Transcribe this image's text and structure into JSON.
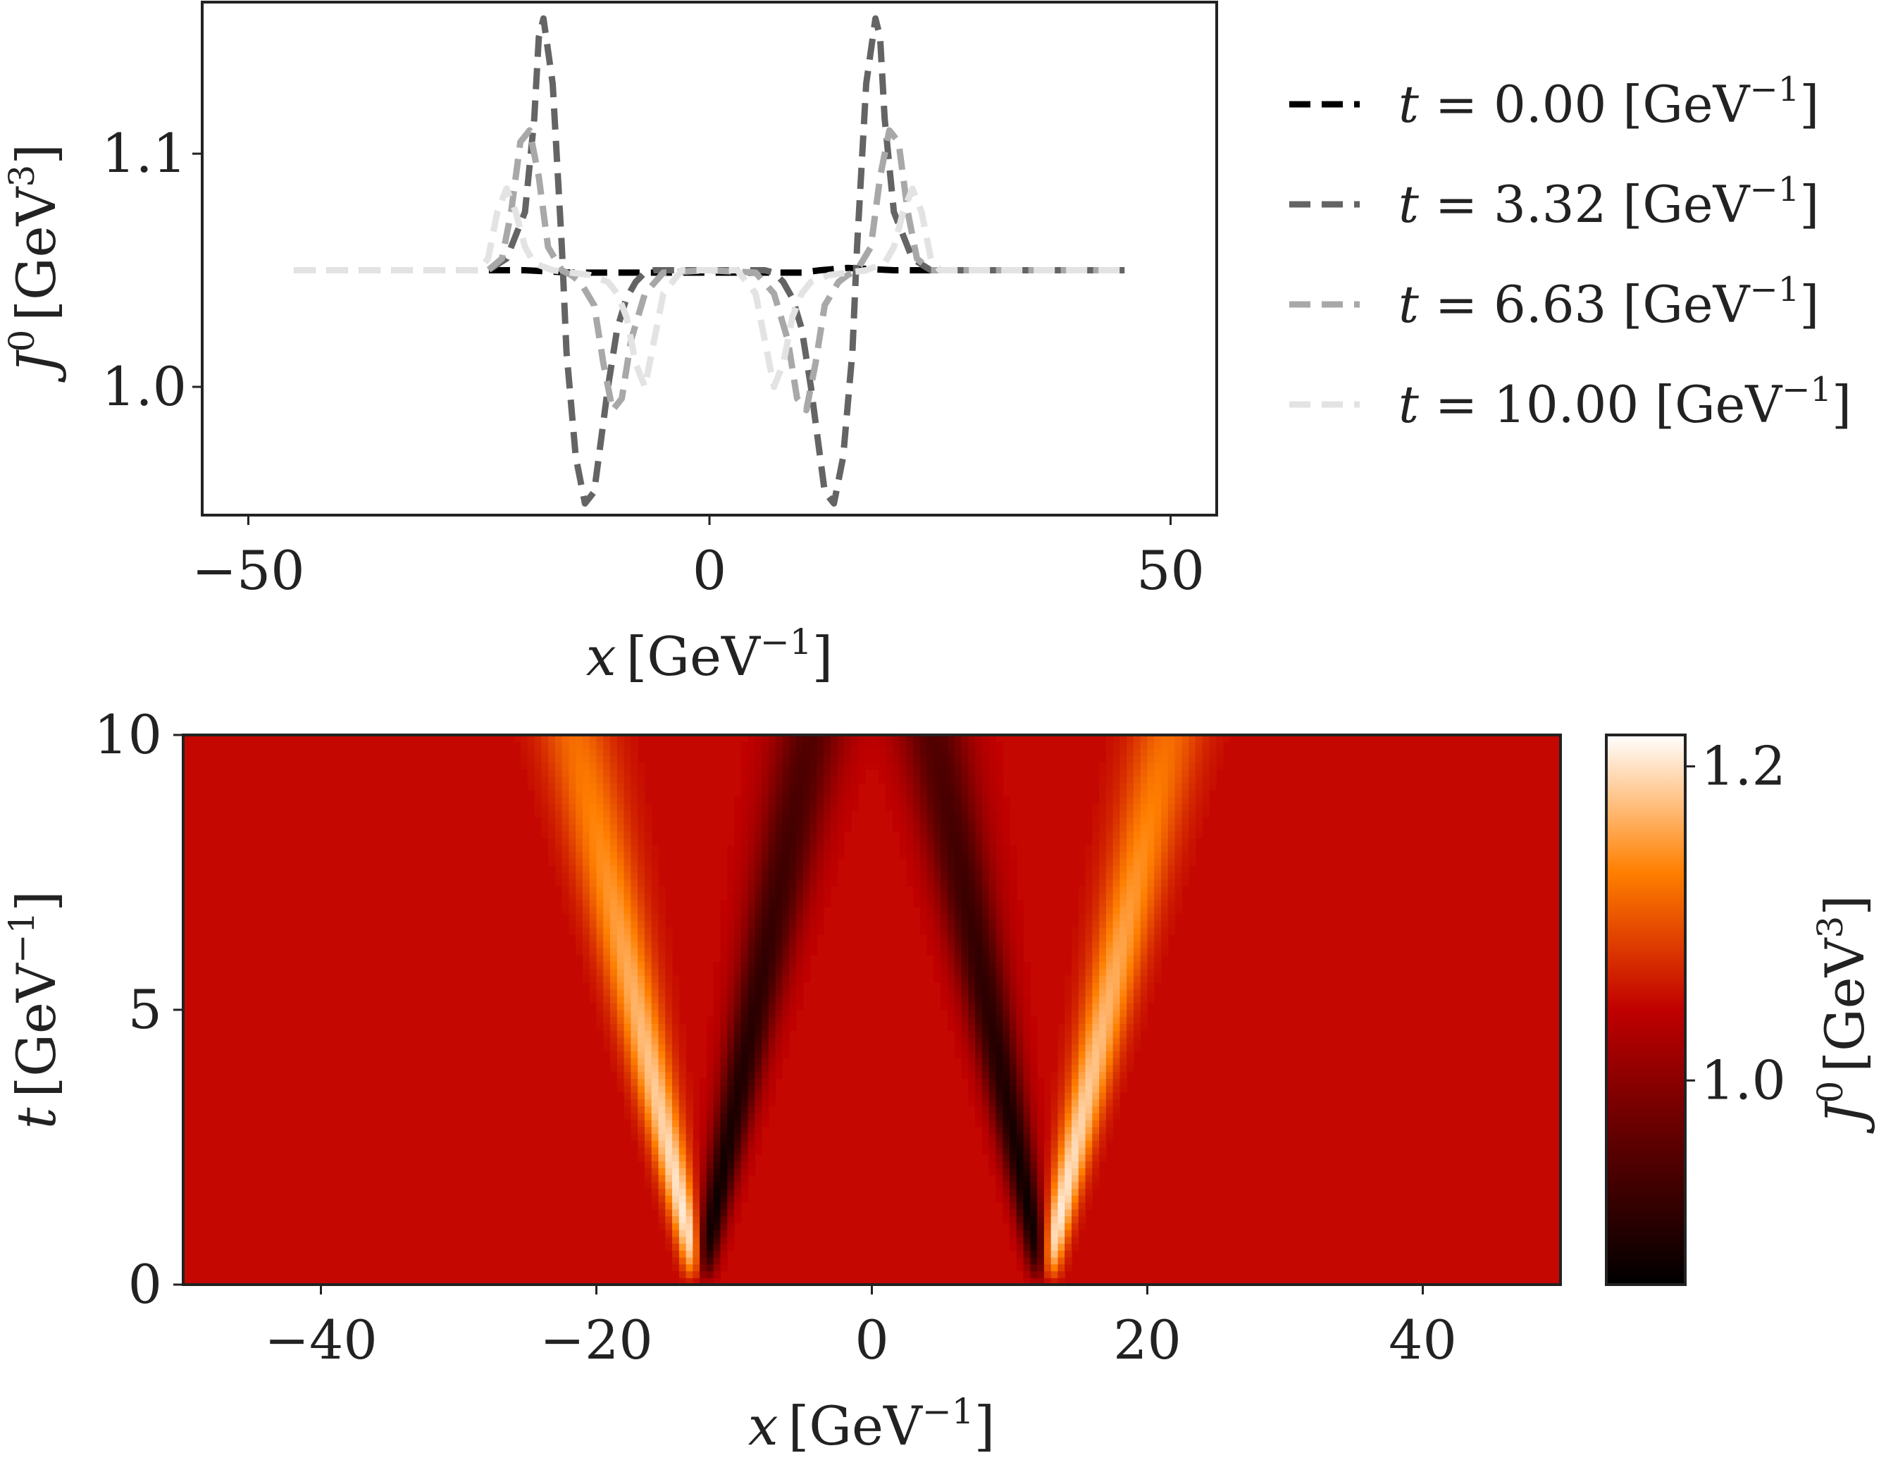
{
  "chart_data": [
    {
      "type": "line",
      "xlabel": {
        "var": "x",
        "unit_base": "GeV",
        "unit_exp": "−1"
      },
      "ylabel": {
        "var": "J",
        "var_sup": "0",
        "unit_base": "GeV",
        "unit_exp": "3"
      },
      "xlim": [
        -55,
        55
      ],
      "ylim": [
        0.945,
        1.165
      ],
      "xticks": [
        {
          "value": -50,
          "label": "−50"
        },
        {
          "value": 0,
          "label": "0"
        },
        {
          "value": 50,
          "label": "50"
        }
      ],
      "yticks": [
        {
          "value": 1.0,
          "label": "1.0"
        },
        {
          "value": 1.1,
          "label": "1.1"
        }
      ],
      "grid": false,
      "legend_position": "outside-right",
      "line_style": "dashed",
      "series": [
        {
          "label_var": "t",
          "label_eq": " = 0.00 ",
          "unit_base": "GeV",
          "unit_exp": "−1",
          "color": "#000000",
          "x": [
            -45,
            -20,
            -15,
            -12,
            -10,
            -8,
            -5,
            0,
            5,
            8,
            10,
            12,
            15,
            20,
            45
          ],
          "y": [
            1.05,
            1.05,
            1.049,
            1.049,
            1.049,
            1.049,
            1.049,
            1.049,
            1.049,
            1.049,
            1.049,
            1.05,
            1.051,
            1.05,
            1.05
          ]
        },
        {
          "label_var": "t",
          "label_eq": " = 3.32 ",
          "unit_base": "GeV",
          "unit_exp": "−1",
          "color": "#646464",
          "x": [
            -45,
            -24,
            -22,
            -20,
            -19,
            -18.5,
            -18,
            -17,
            -16,
            -15.5,
            -14.5,
            -13.5,
            -12.5,
            -11.5,
            -11,
            -10,
            -9,
            -8,
            -7,
            -6,
            -5,
            -3,
            0,
            3,
            5,
            6,
            7,
            8,
            9,
            10,
            11,
            11.5,
            12.5,
            13.5,
            14.5,
            15.5,
            16,
            17,
            18,
            18.5,
            19,
            20,
            22,
            24,
            45
          ],
          "y": [
            1.05,
            1.05,
            1.055,
            1.075,
            1.115,
            1.15,
            1.158,
            1.13,
            1.06,
            1.015,
            0.97,
            0.95,
            0.955,
            0.985,
            1.0,
            1.025,
            1.038,
            1.045,
            1.049,
            1.05,
            1.05,
            1.05,
            1.05,
            1.05,
            1.05,
            1.05,
            1.049,
            1.045,
            1.038,
            1.025,
            1.0,
            0.985,
            0.955,
            0.95,
            0.97,
            1.015,
            1.06,
            1.13,
            1.158,
            1.15,
            1.115,
            1.075,
            1.055,
            1.05,
            1.05
          ]
        },
        {
          "label_var": "t",
          "label_eq": " = 6.63 ",
          "unit_base": "GeV",
          "unit_exp": "−1",
          "color": "#a8a8a8",
          "x": [
            -45,
            -24,
            -22.5,
            -21.5,
            -20.5,
            -19.5,
            -18.5,
            -17.5,
            -16,
            -15,
            -14,
            -12.5,
            -11.5,
            -10.5,
            -9.5,
            -8.5,
            -7,
            -5,
            0,
            5,
            7,
            8.5,
            9.5,
            10.5,
            11.5,
            12.5,
            14,
            15,
            16,
            17.5,
            18.5,
            19.5,
            20.5,
            21.5,
            22.5,
            24,
            45
          ],
          "y": [
            1.05,
            1.05,
            1.055,
            1.075,
            1.105,
            1.11,
            1.09,
            1.06,
            1.05,
            1.048,
            1.045,
            1.035,
            1.01,
            0.99,
            0.995,
            1.02,
            1.04,
            1.049,
            1.05,
            1.049,
            1.04,
            1.02,
            0.995,
            0.99,
            1.01,
            1.035,
            1.045,
            1.048,
            1.05,
            1.06,
            1.09,
            1.11,
            1.105,
            1.075,
            1.055,
            1.05,
            1.05
          ]
        },
        {
          "label_var": "t",
          "label_eq": " = 10.00 ",
          "unit_base": "GeV",
          "unit_exp": "−1",
          "color": "#e3e3e3",
          "x": [
            -45,
            -25,
            -24,
            -23,
            -22,
            -21,
            -20,
            -19,
            -17,
            -15,
            -13,
            -11,
            -10,
            -9,
            -8,
            -7,
            -6,
            -5,
            -3,
            0,
            3,
            5,
            6,
            7,
            8,
            9,
            10,
            11,
            13,
            15,
            17,
            19,
            20,
            21,
            22,
            23,
            24,
            25,
            45
          ],
          "y": [
            1.05,
            1.05,
            1.055,
            1.075,
            1.085,
            1.075,
            1.06,
            1.053,
            1.05,
            1.049,
            1.048,
            1.045,
            1.04,
            1.03,
            1.01,
            1.0,
            1.02,
            1.04,
            1.05,
            1.05,
            1.05,
            1.04,
            1.02,
            1.0,
            1.01,
            1.03,
            1.04,
            1.045,
            1.048,
            1.049,
            1.05,
            1.053,
            1.06,
            1.075,
            1.085,
            1.075,
            1.055,
            1.05,
            1.05
          ]
        }
      ]
    },
    {
      "type": "heatmap",
      "xlabel": {
        "var": "x",
        "unit_base": "GeV",
        "unit_exp": "−1"
      },
      "ylabel": {
        "var": "t",
        "unit_base": "GeV",
        "unit_exp": "−1"
      },
      "xlim": [
        -50,
        50
      ],
      "ylim": [
        0,
        10
      ],
      "xticks": [
        {
          "value": -40,
          "label": "−40"
        },
        {
          "value": -20,
          "label": "−20"
        },
        {
          "value": 0,
          "label": "0"
        },
        {
          "value": 20,
          "label": "20"
        },
        {
          "value": 40,
          "label": "40"
        }
      ],
      "yticks": [
        {
          "value": 0,
          "label": "0"
        },
        {
          "value": 5,
          "label": "5"
        },
        {
          "value": 10,
          "label": "10"
        }
      ],
      "colormap": "gist_heat",
      "colormap_stops": [
        "#000000",
        "#5a0000",
        "#c00000",
        "#ff7f00",
        "#ffffff"
      ],
      "background_value": 1.05,
      "colorbar": {
        "label": {
          "var": "J",
          "var_sup": "0",
          "unit_base": "GeV",
          "unit_exp": "3"
        },
        "range": [
          0.87,
          1.22
        ],
        "ticks": [
          {
            "value": 1.0,
            "label": "1.0"
          },
          {
            "value": 1.2,
            "label": "1.2"
          }
        ]
      },
      "features": [
        {
          "description_kind": "peak",
          "x_at_t0": -12.5,
          "x_at_t10": -21.5,
          "value_at_t0": 1.22,
          "value_at_t10": 1.12
        },
        {
          "description_kind": "dip",
          "x_at_t0": -12.5,
          "x_at_t10": -4.5,
          "value_at_t0": 0.87,
          "value_at_t10": 0.95
        },
        {
          "description_kind": "dip",
          "x_at_t0": 12.5,
          "x_at_t10": 4.5,
          "value_at_t0": 0.87,
          "value_at_t10": 0.95
        },
        {
          "description_kind": "peak",
          "x_at_t0": 12.5,
          "x_at_t10": 21.5,
          "value_at_t0": 1.22,
          "value_at_t10": 1.12
        }
      ]
    }
  ]
}
